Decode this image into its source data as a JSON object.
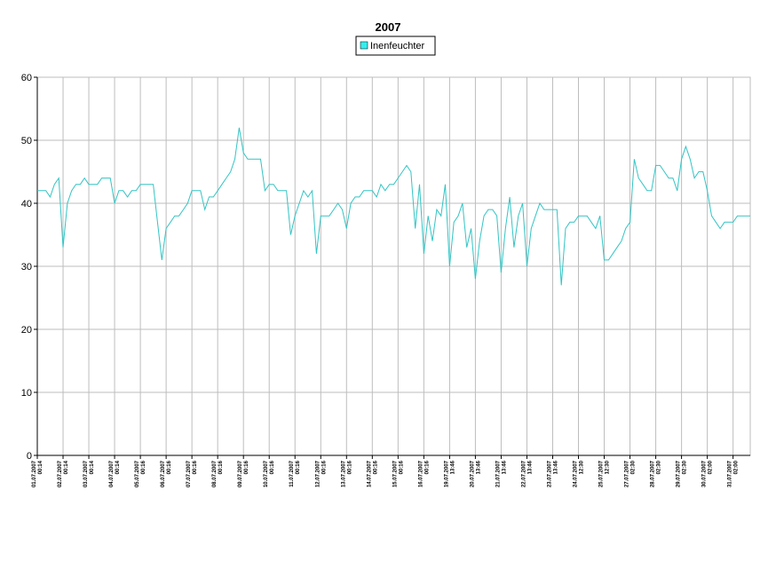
{
  "chart_data": {
    "type": "line",
    "title": "2007",
    "ylim": [
      0,
      60
    ],
    "yticks": [
      0,
      10,
      20,
      30,
      40,
      50,
      60
    ],
    "grid": true,
    "legend": "top",
    "categories": [
      [
        "01.07.2007",
        "00:14"
      ],
      null,
      null,
      null,
      null,
      null,
      [
        "02.07.2007",
        "00:14"
      ],
      null,
      null,
      null,
      null,
      null,
      [
        "03.07.2007",
        "00:14"
      ],
      null,
      null,
      null,
      null,
      null,
      [
        "04.07.2007",
        "00:14"
      ],
      null,
      null,
      null,
      null,
      null,
      [
        "05.07.2007",
        "00:16"
      ],
      null,
      null,
      null,
      null,
      null,
      [
        "06.07.2007",
        "00:16"
      ],
      null,
      null,
      null,
      null,
      null,
      [
        "07.07.2007",
        "00:16"
      ],
      null,
      null,
      null,
      null,
      null,
      [
        "08.07.2007",
        "00:16"
      ],
      null,
      null,
      null,
      null,
      null,
      [
        "09.07.2007",
        "00:16"
      ],
      null,
      null,
      null,
      null,
      null,
      [
        "10.07.2007",
        "00:16"
      ],
      null,
      null,
      null,
      null,
      null,
      [
        "11.07.2007",
        "00:16"
      ],
      null,
      null,
      null,
      null,
      null,
      [
        "12.07.2007",
        "00:16"
      ],
      null,
      null,
      null,
      null,
      null,
      [
        "13.07.2007",
        "00:16"
      ],
      null,
      null,
      null,
      null,
      null,
      [
        "14.07.2007",
        "00:16"
      ],
      null,
      null,
      null,
      null,
      null,
      [
        "15.07.2007",
        "00:16"
      ],
      null,
      null,
      null,
      null,
      null,
      [
        "16.07.2007",
        "00:16"
      ],
      null,
      null,
      null,
      null,
      null,
      [
        "19.07.2007",
        "13:46"
      ],
      null,
      null,
      null,
      null,
      null,
      [
        "20.07.2007",
        "13:46"
      ],
      null,
      null,
      null,
      null,
      null,
      [
        "21.07.2007",
        "13:46"
      ],
      null,
      null,
      null,
      null,
      null,
      [
        "22.07.2007",
        "13:46"
      ],
      null,
      null,
      null,
      null,
      null,
      [
        "23.07.2007",
        "13:46"
      ],
      null,
      null,
      null,
      null,
      null,
      [
        "24.07.2007",
        "12:30"
      ],
      null,
      null,
      null,
      null,
      null,
      [
        "25.07.2007",
        "12:30"
      ],
      null,
      null,
      null,
      null,
      null,
      [
        "27.07.2007",
        "02:30"
      ],
      null,
      null,
      null,
      null,
      null,
      [
        "28.07.2007",
        "02:30"
      ],
      null,
      null,
      null,
      null,
      null,
      [
        "29.07.2007",
        "02:30"
      ],
      null,
      null,
      null,
      null,
      null,
      [
        "30.07.2007",
        "02:00"
      ],
      null,
      null,
      null,
      null,
      null,
      [
        "31.07.2007",
        "02:00"
      ],
      null,
      null,
      null,
      null
    ],
    "series": [
      {
        "name": "Inenfeuchter",
        "color": "#33c4c4",
        "legend_color": "#33eeee",
        "values": [
          42,
          42,
          42,
          41,
          43,
          44,
          33,
          40,
          42,
          43,
          43,
          44,
          43,
          43,
          43,
          44,
          44,
          44,
          40,
          42,
          42,
          41,
          42,
          42,
          43,
          43,
          43,
          43,
          37,
          31,
          36,
          37,
          38,
          38,
          39,
          40,
          42,
          42,
          42,
          39,
          41,
          41,
          42,
          43,
          44,
          45,
          47,
          52,
          48,
          47,
          47,
          47,
          47,
          42,
          43,
          43,
          42,
          42,
          42,
          35,
          38,
          40,
          42,
          41,
          42,
          32,
          38,
          38,
          38,
          39,
          40,
          39,
          36,
          40,
          41,
          41,
          42,
          42,
          42,
          41,
          43,
          42,
          43,
          43,
          44,
          45,
          46,
          45,
          36,
          43,
          32,
          38,
          34,
          39,
          38,
          43,
          30,
          37,
          38,
          40,
          33,
          36,
          28,
          34,
          38,
          39,
          39,
          38,
          29,
          36,
          41,
          33,
          38,
          40,
          30,
          36,
          38,
          40,
          39,
          39,
          39,
          39,
          27,
          36,
          37,
          37,
          38,
          38,
          38,
          37,
          36,
          38,
          31,
          31,
          32,
          33,
          34,
          36,
          37,
          47,
          44,
          43,
          42,
          42,
          46,
          46,
          45,
          44,
          44,
          42,
          47,
          49,
          47,
          44,
          45,
          45,
          42,
          38,
          37,
          36,
          37,
          37,
          37,
          38,
          38,
          38,
          38
        ]
      }
    ]
  }
}
